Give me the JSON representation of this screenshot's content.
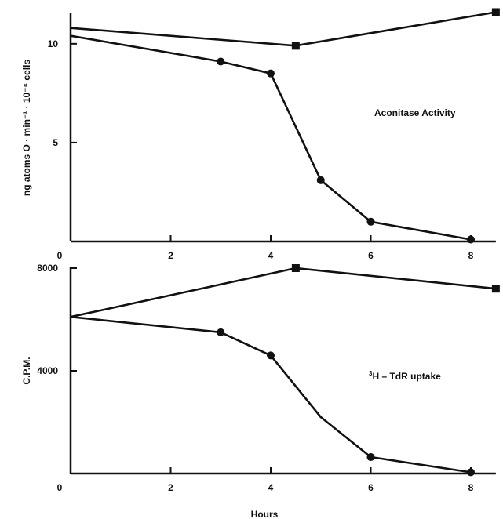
{
  "chart_data": [
    {
      "type": "line",
      "panel": "top",
      "ylabel": "ng atoms O · min⁻¹ · 10⁻⁶ cells",
      "xlabel": "",
      "annotation": "Aconitase Activity",
      "xlim": [
        0,
        8.5
      ],
      "ylim": [
        0,
        11.5
      ],
      "xticks": [
        0,
        2,
        4,
        6,
        8
      ],
      "xtick_labels": [
        "0",
        "2",
        "4",
        "6",
        "8"
      ],
      "yticks": [
        5,
        10
      ],
      "ytick_labels": [
        "5",
        "10"
      ],
      "series": [
        {
          "marker": "square",
          "x": [
            0,
            4.5,
            8.5
          ],
          "y": [
            10.8,
            9.9,
            11.6
          ],
          "marked": [
            false,
            true,
            true
          ]
        },
        {
          "marker": "circle",
          "x": [
            0,
            3,
            4,
            5,
            6,
            8
          ],
          "y": [
            10.4,
            9.1,
            8.5,
            3.1,
            1.0,
            0.1
          ],
          "marked": [
            false,
            true,
            true,
            true,
            true,
            true
          ]
        }
      ]
    },
    {
      "type": "line",
      "panel": "bottom",
      "ylabel": "C.P.M.",
      "xlabel": "Hours",
      "annotation_sup": "3",
      "annotation": "H  –  TdR uptake",
      "xlim": [
        0,
        8.5
      ],
      "ylim": [
        0,
        8000
      ],
      "xticks": [
        0,
        2,
        4,
        6,
        8
      ],
      "xtick_labels": [
        "0",
        "2",
        "4",
        "6",
        "8"
      ],
      "yticks": [
        4000,
        8000
      ],
      "ytick_labels": [
        "4000",
        "8000"
      ],
      "series": [
        {
          "marker": "square",
          "x": [
            0,
            4.5,
            8.5
          ],
          "y": [
            6100,
            8000,
            7200
          ],
          "marked": [
            false,
            true,
            true
          ]
        },
        {
          "marker": "circle",
          "x": [
            0,
            3,
            4,
            5,
            6,
            8
          ],
          "y": [
            6100,
            5500,
            4600,
            2200,
            640,
            50
          ],
          "marked": [
            false,
            true,
            true,
            false,
            true,
            true
          ]
        }
      ]
    }
  ]
}
